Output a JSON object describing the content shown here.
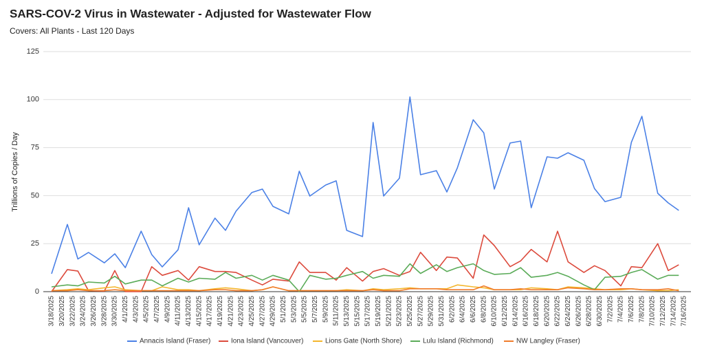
{
  "chart_data": {
    "type": "line",
    "title": "SARS-COV-2 Virus in Wastewater - Adjusted for Wastewater Flow",
    "subtitle": "Covers: All Plants - Last 120 Days",
    "y_label": "Trillions of Copies / Day",
    "x": [
      "3/18/2025",
      "3/21/2025",
      "3/23/2025",
      "3/25/2025",
      "3/28/2025",
      "3/30/2025",
      "4/1/2025",
      "4/4/2025",
      "4/6/2025",
      "4/8/2025",
      "4/11/2025",
      "4/13/2025",
      "4/15/2025",
      "4/18/2025",
      "4/20/2025",
      "4/22/2025",
      "4/25/2025",
      "4/27/2025",
      "4/29/2025",
      "5/2/2025",
      "5/4/2025",
      "5/6/2025",
      "5/9/2025",
      "5/11/2025",
      "5/13/2025",
      "5/16/2025",
      "5/18/2025",
      "5/20/2025",
      "5/23/2025",
      "5/25/2025",
      "5/27/2025",
      "5/30/2025",
      "6/1/2025",
      "6/3/2025",
      "6/6/2025",
      "6/8/2025",
      "6/10/2025",
      "6/13/2025",
      "6/15/2025",
      "6/17/2025",
      "6/20/2025",
      "6/22/2025",
      "6/24/2025",
      "6/27/2025",
      "6/29/2025",
      "7/1/2025",
      "7/4/2025",
      "7/6/2025",
      "7/8/2025",
      "7/11/2025",
      "7/13/2025",
      "7/15/2025"
    ],
    "xticks": [
      "3/18/2025",
      "3/20/2025",
      "3/22/2025",
      "3/24/2025",
      "3/26/2025",
      "3/28/2025",
      "3/30/2025",
      "4/1/2025",
      "4/3/2025",
      "4/5/2025",
      "4/7/2025",
      "4/9/2025",
      "4/11/2025",
      "4/13/2025",
      "4/15/2025",
      "4/17/2025",
      "4/19/2025",
      "4/21/2025",
      "4/23/2025",
      "4/25/2025",
      "4/27/2025",
      "4/29/2025",
      "5/1/2025",
      "5/3/2025",
      "5/5/2025",
      "5/7/2025",
      "5/9/2025",
      "5/11/2025",
      "5/13/2025",
      "5/15/2025",
      "5/17/2025",
      "5/19/2025",
      "5/21/2025",
      "5/23/2025",
      "5/25/2025",
      "5/27/2025",
      "5/29/2025",
      "5/31/2025",
      "6/2/2025",
      "6/4/2025",
      "6/6/2025",
      "6/8/2025",
      "6/10/2025",
      "6/12/2025",
      "6/14/2025",
      "6/16/2025",
      "6/18/2025",
      "6/20/2025",
      "6/22/2025",
      "6/24/2025",
      "6/26/2025",
      "6/28/2025",
      "6/30/2025",
      "7/2/2025",
      "7/4/2025",
      "7/6/2025",
      "7/8/2025",
      "7/10/2025",
      "7/12/2025",
      "7/14/2025",
      "7/16/2025"
    ],
    "ylim": [
      0,
      125
    ],
    "yticks": [
      0,
      25,
      50,
      75,
      100,
      125
    ],
    "grid": true,
    "legend": "bottom",
    "series": [
      {
        "name": "Annacis Island (Fraser)",
        "color": "#4a80e6",
        "values": [
          9.3,
          35,
          17,
          20.4,
          15,
          19.7,
          12.5,
          31.5,
          19.3,
          12.9,
          21.8,
          43.7,
          24.4,
          38.3,
          31.9,
          41.9,
          51.6,
          53.4,
          44.4,
          40.5,
          62.7,
          49.8,
          55.5,
          57.7,
          31.9,
          28.7,
          88.1,
          49.8,
          59.1,
          101.4,
          60.9,
          63,
          51.9,
          64.5,
          89.5,
          82.7,
          53.4,
          77.4,
          78.4,
          43.7,
          70.2,
          69.5,
          72.3,
          68.4,
          53.7,
          46.9,
          49.1,
          77.7,
          91.3,
          51.2,
          46.2,
          42.3
        ]
      },
      {
        "name": "Iona Island (Vancouver)",
        "color": "#dc4a3c",
        "values": [
          0,
          11.5,
          10.7,
          0.5,
          0.3,
          11,
          0,
          0,
          13,
          8.5,
          11,
          6,
          13,
          10.5,
          10.5,
          10,
          6,
          3.5,
          6.5,
          5.5,
          15.5,
          10,
          10,
          6,
          12.5,
          5.5,
          10.5,
          12,
          8.5,
          10.5,
          20.5,
          11,
          18,
          17.5,
          7,
          29.5,
          24,
          13,
          16,
          22,
          15.5,
          31.5,
          15.5,
          10,
          13.5,
          11,
          3,
          13,
          12.5,
          25,
          11,
          14
        ]
      },
      {
        "name": "Lions Gate (North Shore)",
        "color": "#f4b62c",
        "values": [
          0.5,
          1,
          1.5,
          1,
          2,
          2.5,
          1,
          0.5,
          0.5,
          2.5,
          1,
          1,
          0.5,
          1.5,
          2,
          1.5,
          0.5,
          1,
          2.5,
          0.5,
          0.5,
          0.5,
          0.5,
          0.5,
          1,
          0.5,
          1.5,
          1,
          1.5,
          2,
          1.5,
          1.5,
          1.5,
          3.5,
          2.5,
          2,
          1,
          1,
          1,
          2,
          1.5,
          1,
          2.5,
          2,
          1.5,
          1,
          1,
          1.5,
          1,
          0.5,
          0.5,
          1
        ]
      },
      {
        "name": "Lulu Island (Richmond)",
        "color": "#5aab58",
        "values": [
          2.5,
          3.5,
          3,
          5,
          4.5,
          8,
          4,
          6,
          6,
          3,
          7,
          5,
          7,
          6.5,
          10,
          7,
          8.5,
          6,
          8.5,
          6,
          0,
          8.5,
          6.5,
          7,
          8.5,
          10.5,
          7,
          8.5,
          8,
          14.5,
          9.5,
          14,
          10.5,
          12.5,
          14.5,
          11,
          9,
          9.5,
          12.5,
          7.5,
          8.5,
          10,
          8,
          3.5,
          1,
          7.5,
          8,
          10,
          11.5,
          6.5,
          8.5,
          8.5
        ]
      },
      {
        "name": "NW Langley (Fraser)",
        "color": "#f07b2a",
        "values": [
          0.5,
          0.5,
          1,
          0.5,
          0.5,
          1,
          0.5,
          0.5,
          0.5,
          0.5,
          0.5,
          0.5,
          0.5,
          1,
          1,
          0.5,
          0.5,
          1,
          2.5,
          0.5,
          0.5,
          0.5,
          0.5,
          0.5,
          0.5,
          0.5,
          1,
          0.5,
          0.5,
          1.5,
          1.5,
          1.5,
          1,
          1,
          1,
          3,
          1,
          1,
          1.5,
          1,
          1,
          1,
          2,
          1.5,
          1,
          1,
          1.5,
          1.5,
          1,
          1,
          1.5,
          0.5
        ]
      }
    ]
  }
}
